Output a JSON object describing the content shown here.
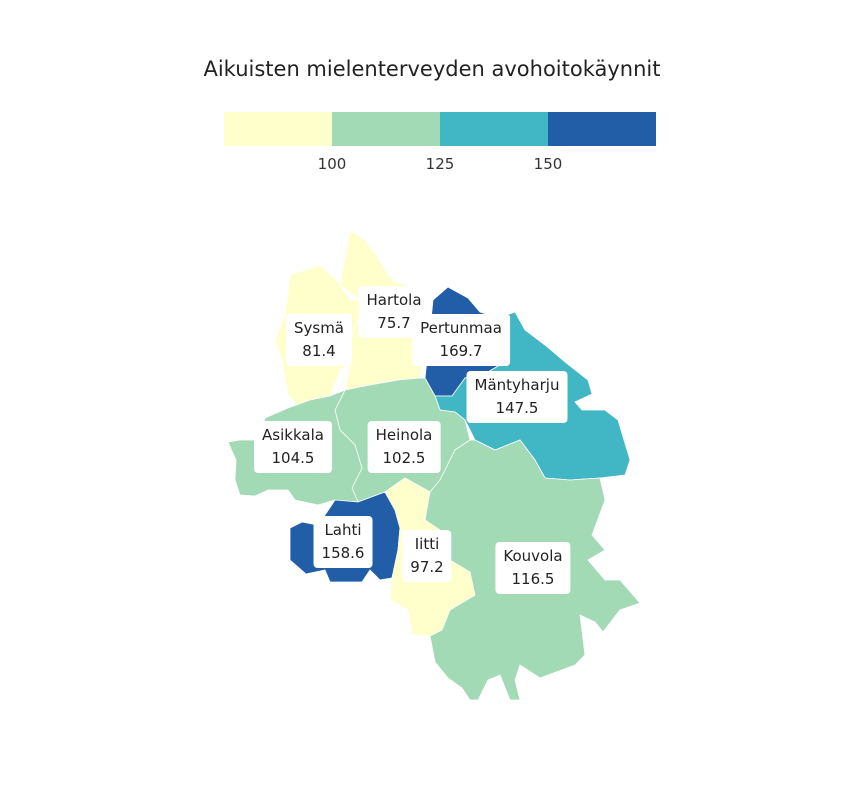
{
  "title": "Aikuisten mielenterveyden avohoitokäynnit",
  "legend": {
    "colors": [
      "#ffffcc",
      "#a1dab4",
      "#41b6c4",
      "#225ea8"
    ],
    "ticks": [
      "100",
      "125",
      "150"
    ]
  },
  "regions": [
    {
      "name": "Hartola",
      "value": "75.7",
      "color": "#ffffcc"
    },
    {
      "name": "Sysmä",
      "value": "81.4",
      "color": "#ffffcc"
    },
    {
      "name": "Pertunmaa",
      "value": "169.7",
      "color": "#225ea8"
    },
    {
      "name": "Mäntyharju",
      "value": "147.5",
      "color": "#41b6c4"
    },
    {
      "name": "Asikkala",
      "value": "104.5",
      "color": "#a1dab4"
    },
    {
      "name": "Heinola",
      "value": "102.5",
      "color": "#a1dab4"
    },
    {
      "name": "Lahti",
      "value": "158.6",
      "color": "#225ea8"
    },
    {
      "name": "Iitti",
      "value": "97.2",
      "color": "#ffffcc"
    },
    {
      "name": "Kouvola",
      "value": "116.5",
      "color": "#a1dab4"
    }
  ]
}
